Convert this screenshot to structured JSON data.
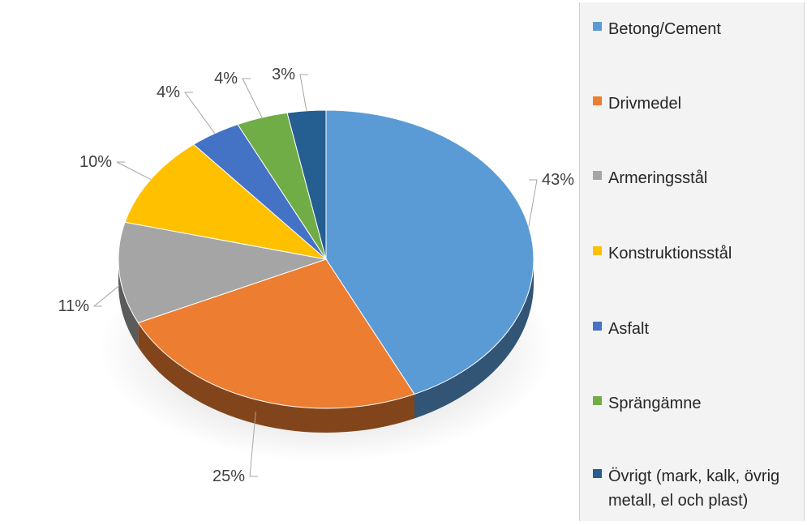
{
  "chart_data": {
    "type": "pie",
    "title": "",
    "categories": [
      "Betong/Cement",
      "Drivmedel",
      "Armeringsstål",
      "Konstruktionsstål",
      "Asfalt",
      "Sprängämne",
      "Övrigt (mark, kalk, övrig metall, el och plast)"
    ],
    "values": [
      43,
      25,
      11,
      10,
      4,
      4,
      3
    ],
    "data_labels": [
      "43%",
      "25%",
      "11%",
      "10%",
      "4%",
      "4%",
      "3%"
    ],
    "colors": [
      "#5b9bd5",
      "#ed7d31",
      "#a5a5a5",
      "#ffc000",
      "#4472c4",
      "#70ad47",
      "#255e91"
    ],
    "legend_placement": "right",
    "style": "3d"
  }
}
